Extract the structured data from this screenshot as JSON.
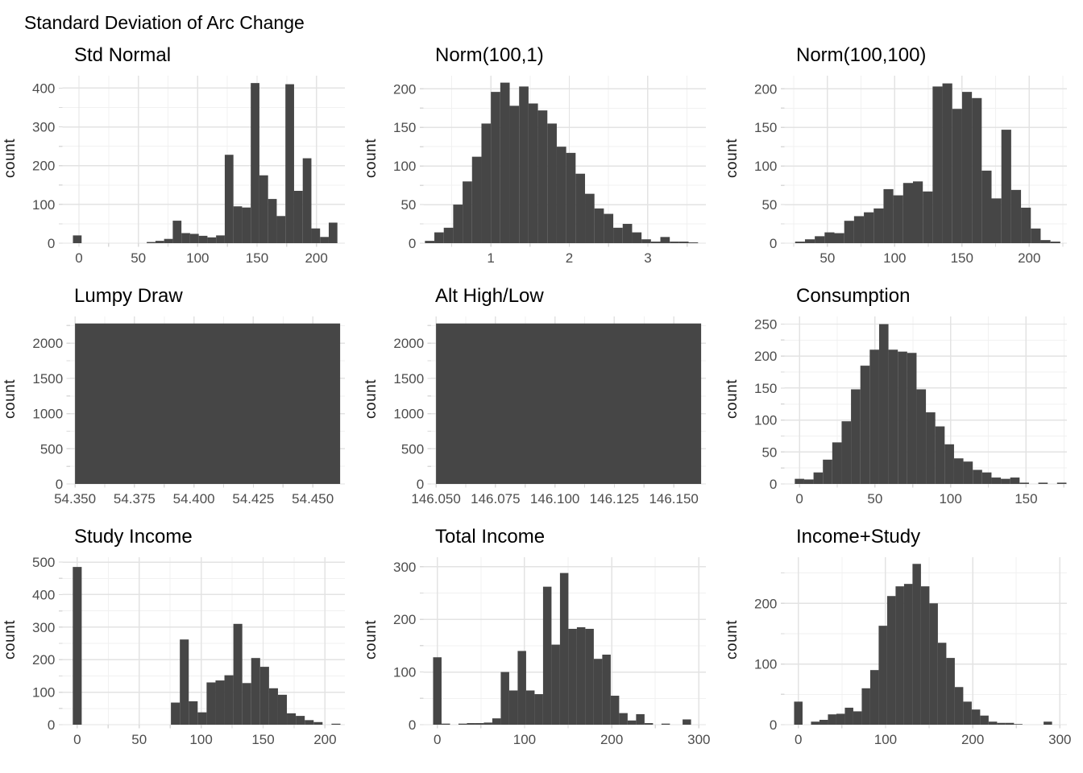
{
  "page_title": "Standard Deviation of Arc Change",
  "ylabel_all": "count",
  "colors": {
    "bar": "#464646",
    "grid_major": "#e3e3e3",
    "grid_minor": "#f1f1f1",
    "tick_mark": "#d9d9d9",
    "tick_label": "#4d4d4d",
    "title": "#000000",
    "background": "#ffffff"
  },
  "chart_data": [
    {
      "type": "histogram",
      "title": "Std Normal",
      "ylabel": "count",
      "xlim": [
        -14,
        224
      ],
      "ylim": [
        0,
        432
      ],
      "x_ticks": [
        0,
        50,
        100,
        150,
        200
      ],
      "x_tick_labels": [
        "0",
        "50",
        "100",
        "150",
        "200"
      ],
      "x_minor": [
        25,
        75,
        125,
        175
      ],
      "y_ticks": [
        0,
        100,
        200,
        300,
        400
      ],
      "y_tick_labels": [
        "0",
        "100",
        "200",
        "300",
        "400"
      ],
      "y_minor": [
        50,
        150,
        250,
        350
      ],
      "bin_width": 7.3,
      "bars": [
        [
          -5.1,
          20
        ],
        [
          57.1,
          3
        ],
        [
          64.4,
          6
        ],
        [
          71.7,
          11
        ],
        [
          79,
          58
        ],
        [
          86.3,
          26
        ],
        [
          93.6,
          24
        ],
        [
          100.9,
          19
        ],
        [
          108.2,
          15
        ],
        [
          115.5,
          20
        ],
        [
          122.8,
          228
        ],
        [
          130.1,
          95
        ],
        [
          137.4,
          92
        ],
        [
          144.7,
          413
        ],
        [
          152,
          175
        ],
        [
          159.3,
          114
        ],
        [
          166.6,
          70
        ],
        [
          173.9,
          410
        ],
        [
          181.2,
          135
        ],
        [
          188.5,
          219
        ],
        [
          195.8,
          38
        ],
        [
          203.1,
          16
        ],
        [
          210.4,
          53
        ]
      ]
    },
    {
      "type": "histogram",
      "title": "Norm(100,1)",
      "ylabel": "count",
      "xlim": [
        0.14,
        3.74
      ],
      "ylim": [
        0,
        217
      ],
      "x_ticks": [
        1,
        2,
        3
      ],
      "x_tick_labels": [
        "1",
        "2",
        "3"
      ],
      "x_minor": [
        0.5,
        1.5,
        2.5,
        3.5
      ],
      "y_ticks": [
        0,
        50,
        100,
        150,
        200
      ],
      "y_tick_labels": [
        "0",
        "50",
        "100",
        "150",
        "200"
      ],
      "y_minor": [
        25,
        75,
        125,
        175
      ],
      "bin_width": 0.12,
      "bars": [
        [
          0.16,
          3
        ],
        [
          0.28,
          14
        ],
        [
          0.4,
          20
        ],
        [
          0.52,
          50
        ],
        [
          0.64,
          80
        ],
        [
          0.76,
          112
        ],
        [
          0.88,
          155
        ],
        [
          1.0,
          196
        ],
        [
          1.12,
          208
        ],
        [
          1.24,
          178
        ],
        [
          1.36,
          203
        ],
        [
          1.48,
          181
        ],
        [
          1.6,
          172
        ],
        [
          1.72,
          155
        ],
        [
          1.84,
          125
        ],
        [
          1.96,
          117
        ],
        [
          2.08,
          90
        ],
        [
          2.2,
          64
        ],
        [
          2.32,
          45
        ],
        [
          2.44,
          38
        ],
        [
          2.56,
          20
        ],
        [
          2.68,
          25
        ],
        [
          2.8,
          14
        ],
        [
          2.92,
          5
        ],
        [
          3.04,
          2
        ],
        [
          3.16,
          8
        ],
        [
          3.28,
          2
        ],
        [
          3.4,
          2
        ],
        [
          3.52,
          1
        ]
      ]
    },
    {
      "type": "histogram",
      "title": "Norm(100,100)",
      "ylabel": "count",
      "xlim": [
        18,
        228
      ],
      "ylim": [
        0,
        217
      ],
      "x_ticks": [
        50,
        100,
        150,
        200
      ],
      "x_tick_labels": [
        "50",
        "100",
        "150",
        "200"
      ],
      "x_minor": [
        25,
        75,
        125,
        175,
        225
      ],
      "y_ticks": [
        0,
        50,
        100,
        150,
        200
      ],
      "y_tick_labels": [
        "0",
        "50",
        "100",
        "150",
        "200"
      ],
      "y_minor": [
        25,
        75,
        125,
        175
      ],
      "bin_width": 7.3,
      "bars": [
        [
          26,
          2
        ],
        [
          33.3,
          5
        ],
        [
          40.6,
          9
        ],
        [
          47.9,
          14
        ],
        [
          55.2,
          13
        ],
        [
          62.5,
          29
        ],
        [
          69.8,
          35
        ],
        [
          77.1,
          40
        ],
        [
          84.4,
          45
        ],
        [
          91.7,
          70
        ],
        [
          99,
          62
        ],
        [
          106.3,
          78
        ],
        [
          113.6,
          80
        ],
        [
          120.9,
          67
        ],
        [
          128.2,
          203
        ],
        [
          135.5,
          207
        ],
        [
          142.8,
          174
        ],
        [
          150.1,
          196
        ],
        [
          157.4,
          188
        ],
        [
          164.7,
          94
        ],
        [
          172,
          58
        ],
        [
          179.3,
          147
        ],
        [
          186.6,
          69
        ],
        [
          193.9,
          46
        ],
        [
          201.2,
          19
        ],
        [
          208.5,
          4
        ],
        [
          215.8,
          2
        ]
      ]
    },
    {
      "type": "histogram",
      "title": "Lumpy Draw",
      "ylabel": "count",
      "xlim": [
        54.348,
        54.4635
      ],
      "ylim": [
        0,
        2380
      ],
      "x_ticks": [
        54.35,
        54.375,
        54.4,
        54.425,
        54.45
      ],
      "x_tick_labels": [
        "54.350",
        "54.375",
        "54.400",
        "54.425",
        "54.450"
      ],
      "x_minor": [
        54.3625,
        54.3875,
        54.4125,
        54.4375
      ],
      "y_ticks": [
        0,
        500,
        1000,
        1500,
        2000
      ],
      "y_tick_labels": [
        "0",
        "500",
        "1000",
        "1500",
        "2000"
      ],
      "y_minor": [
        250,
        750,
        1250,
        1750,
        2250
      ],
      "bin_width": 0.1115,
      "bars": [
        [
          54.35,
          2280
        ]
      ]
    },
    {
      "type": "histogram",
      "title": "Alt High/Low",
      "ylabel": "count",
      "xlim": [
        146.048,
        146.1635
      ],
      "ylim": [
        0,
        2380
      ],
      "x_ticks": [
        146.05,
        146.075,
        146.1,
        146.125,
        146.15
      ],
      "x_tick_labels": [
        "146.050",
        "146.075",
        "146.100",
        "146.125",
        "146.150"
      ],
      "x_minor": [
        146.0625,
        146.0875,
        146.1125,
        146.1375
      ],
      "y_ticks": [
        0,
        500,
        1000,
        1500,
        2000
      ],
      "y_tick_labels": [
        "0",
        "500",
        "1000",
        "1500",
        "2000"
      ],
      "y_minor": [
        250,
        750,
        1250,
        1750,
        2250
      ],
      "bin_width": 0.1115,
      "bars": [
        [
          146.05,
          2280
        ]
      ]
    },
    {
      "type": "histogram",
      "title": "Consumption",
      "ylabel": "count",
      "xlim": [
        -10,
        177
      ],
      "ylim": [
        0,
        262
      ],
      "x_ticks": [
        0,
        50,
        100,
        150
      ],
      "x_tick_labels": [
        "0",
        "50",
        "100",
        "150"
      ],
      "x_minor": [
        25,
        75,
        125,
        175
      ],
      "y_ticks": [
        0,
        50,
        100,
        150,
        200,
        250
      ],
      "y_tick_labels": [
        "0",
        "50",
        "100",
        "150",
        "200",
        "250"
      ],
      "y_minor": [
        25,
        75,
        125,
        175,
        225
      ],
      "bin_width": 6.2,
      "bars": [
        [
          -3.1,
          8
        ],
        [
          3.1,
          7
        ],
        [
          9.3,
          18
        ],
        [
          15.5,
          38
        ],
        [
          21.7,
          65
        ],
        [
          27.9,
          98
        ],
        [
          34.1,
          148
        ],
        [
          40.3,
          185
        ],
        [
          46.5,
          210
        ],
        [
          52.7,
          250
        ],
        [
          58.9,
          210
        ],
        [
          65.1,
          207
        ],
        [
          71.3,
          205
        ],
        [
          77.5,
          148
        ],
        [
          83.7,
          112
        ],
        [
          89.9,
          90
        ],
        [
          96.1,
          62
        ],
        [
          102.3,
          40
        ],
        [
          108.5,
          35
        ],
        [
          114.7,
          22
        ],
        [
          120.9,
          18
        ],
        [
          127.1,
          10
        ],
        [
          133.3,
          8
        ],
        [
          139.5,
          10
        ],
        [
          145.7,
          2
        ],
        [
          158.1,
          2
        ],
        [
          170.5,
          2
        ]
      ]
    },
    {
      "type": "histogram",
      "title": "Study Income",
      "ylabel": "count",
      "xlim": [
        -12,
        216
      ],
      "ylim": [
        0,
        515
      ],
      "x_ticks": [
        0,
        50,
        100,
        150,
        200
      ],
      "x_tick_labels": [
        "0",
        "50",
        "100",
        "150",
        "200"
      ],
      "x_minor": [
        25,
        75,
        125,
        175
      ],
      "y_ticks": [
        0,
        100,
        200,
        300,
        400,
        500
      ],
      "y_tick_labels": [
        "0",
        "100",
        "200",
        "300",
        "400",
        "500"
      ],
      "y_minor": [
        50,
        150,
        250,
        350,
        450
      ],
      "bin_width": 7.2,
      "bars": [
        [
          -3.6,
          485
        ],
        [
          75.6,
          68
        ],
        [
          82.8,
          262
        ],
        [
          90,
          72
        ],
        [
          97.2,
          38
        ],
        [
          104.4,
          130
        ],
        [
          111.6,
          136
        ],
        [
          118.8,
          152
        ],
        [
          126,
          310
        ],
        [
          133.2,
          128
        ],
        [
          140.4,
          205
        ],
        [
          147.6,
          178
        ],
        [
          154.8,
          112
        ],
        [
          162,
          92
        ],
        [
          169.2,
          35
        ],
        [
          176.4,
          27
        ],
        [
          183.6,
          14
        ],
        [
          190.8,
          8
        ],
        [
          205.2,
          3
        ]
      ]
    },
    {
      "type": "histogram",
      "title": "Total Income",
      "ylabel": "count",
      "xlim": [
        -16,
        308
      ],
      "ylim": [
        0,
        318
      ],
      "x_ticks": [
        0,
        100,
        200,
        300
      ],
      "x_tick_labels": [
        "0",
        "100",
        "200",
        "300"
      ],
      "x_minor": [
        50,
        150,
        250
      ],
      "y_ticks": [
        0,
        100,
        200,
        300
      ],
      "y_tick_labels": [
        "0",
        "100",
        "200",
        "300"
      ],
      "y_minor": [
        50,
        150,
        250
      ],
      "bin_width": 9.7,
      "bars": [
        [
          -4.85,
          128
        ],
        [
          4.85,
          2
        ],
        [
          24.25,
          2
        ],
        [
          33.95,
          3
        ],
        [
          43.65,
          3
        ],
        [
          53.35,
          4
        ],
        [
          63.05,
          12
        ],
        [
          72.75,
          100
        ],
        [
          82.45,
          65
        ],
        [
          92.15,
          140
        ],
        [
          101.85,
          65
        ],
        [
          111.55,
          58
        ],
        [
          121.25,
          262
        ],
        [
          130.95,
          152
        ],
        [
          140.65,
          288
        ],
        [
          150.35,
          182
        ],
        [
          160.05,
          185
        ],
        [
          169.75,
          182
        ],
        [
          179.45,
          125
        ],
        [
          189.15,
          133
        ],
        [
          198.85,
          55
        ],
        [
          208.55,
          22
        ],
        [
          218.25,
          8
        ],
        [
          227.95,
          20
        ],
        [
          237.65,
          3
        ],
        [
          257.05,
          2
        ],
        [
          281.3,
          10
        ]
      ]
    },
    {
      "type": "histogram",
      "title": "Income+Study",
      "ylabel": "count",
      "xlim": [
        -16,
        308
      ],
      "ylim": [
        0,
        276
      ],
      "x_ticks": [
        0,
        100,
        200,
        300
      ],
      "x_tick_labels": [
        "0",
        "100",
        "200",
        "300"
      ],
      "x_minor": [
        50,
        150,
        250
      ],
      "y_ticks": [
        0,
        100,
        200
      ],
      "y_tick_labels": [
        "0",
        "100",
        "200"
      ],
      "y_minor": [
        50,
        150,
        250
      ],
      "bin_width": 9.7,
      "bars": [
        [
          -4.85,
          38
        ],
        [
          14.55,
          5
        ],
        [
          24.25,
          8
        ],
        [
          33.95,
          17
        ],
        [
          43.65,
          18
        ],
        [
          53.35,
          28
        ],
        [
          63.05,
          22
        ],
        [
          72.75,
          60
        ],
        [
          82.45,
          90
        ],
        [
          92.15,
          163
        ],
        [
          101.85,
          212
        ],
        [
          111.55,
          228
        ],
        [
          121.25,
          232
        ],
        [
          130.95,
          265
        ],
        [
          140.65,
          228
        ],
        [
          150.35,
          200
        ],
        [
          160.05,
          135
        ],
        [
          169.75,
          110
        ],
        [
          179.45,
          62
        ],
        [
          189.15,
          38
        ],
        [
          198.85,
          25
        ],
        [
          208.55,
          15
        ],
        [
          218.25,
          5
        ],
        [
          227.95,
          3
        ],
        [
          237.65,
          3
        ],
        [
          247.35,
          1
        ],
        [
          281.3,
          5
        ]
      ]
    }
  ]
}
